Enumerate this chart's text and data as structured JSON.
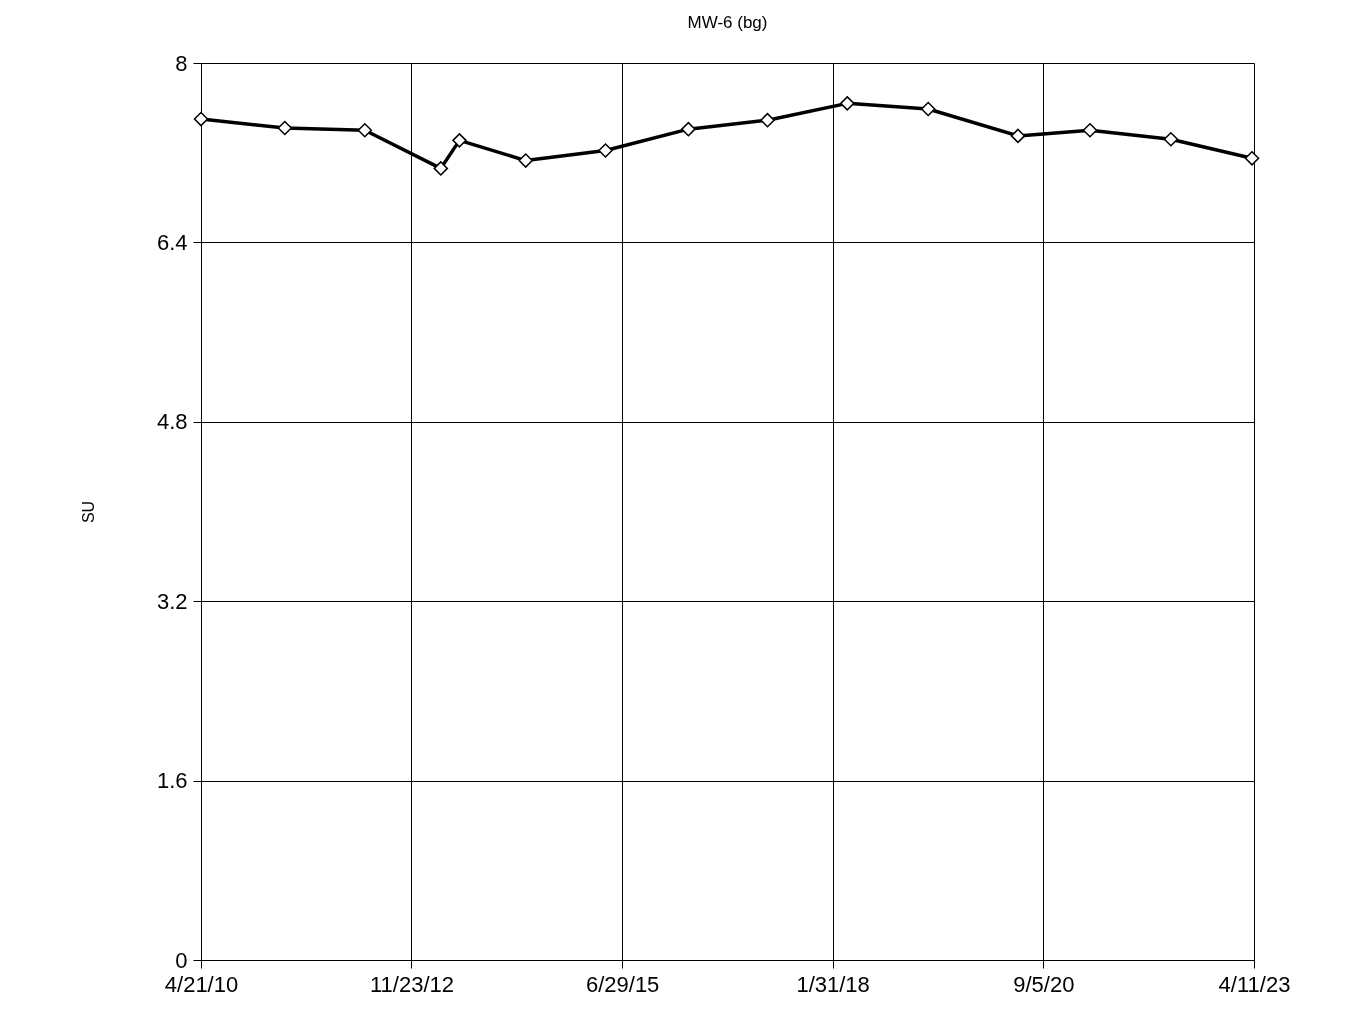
{
  "chart_data": {
    "type": "line",
    "title": "MW-6 (bg)",
    "ylabel": "SU",
    "x": [
      "2010-04-21",
      "2011-05-03",
      "2012-04-27",
      "2013-04-04",
      "2013-06-27",
      "2014-04-21",
      "2015-04-15",
      "2016-04-22",
      "2017-04-13",
      "2018-04-07",
      "2019-04-06",
      "2020-05-14",
      "2021-04-03",
      "2022-04-02",
      "2023-04-02"
    ],
    "series": [
      {
        "color": "#000000",
        "values": [
          7.5,
          7.42,
          7.4,
          7.06,
          7.31,
          7.13,
          7.22,
          7.41,
          7.49,
          7.64,
          7.59,
          7.35,
          7.4,
          7.32,
          7.15
        ]
      }
    ],
    "xlim": [
      "2010-04-21",
      "2023-04-11"
    ],
    "xticks": [
      {
        "value": "2010-04-21",
        "label": "4/21/10"
      },
      {
        "value": "2012-11-23",
        "label": "11/23/12"
      },
      {
        "value": "2015-06-29",
        "label": "6/29/15"
      },
      {
        "value": "2018-01-31",
        "label": "1/31/18"
      },
      {
        "value": "2020-09-05",
        "label": "9/5/20"
      },
      {
        "value": "2023-04-11",
        "label": "4/11/23"
      }
    ],
    "ylim": [
      0,
      8
    ],
    "yticks": [
      0,
      1.6,
      3.2,
      4.8,
      6.4,
      8
    ],
    "grid": true,
    "marker": "diamond",
    "line_style": "solid"
  }
}
